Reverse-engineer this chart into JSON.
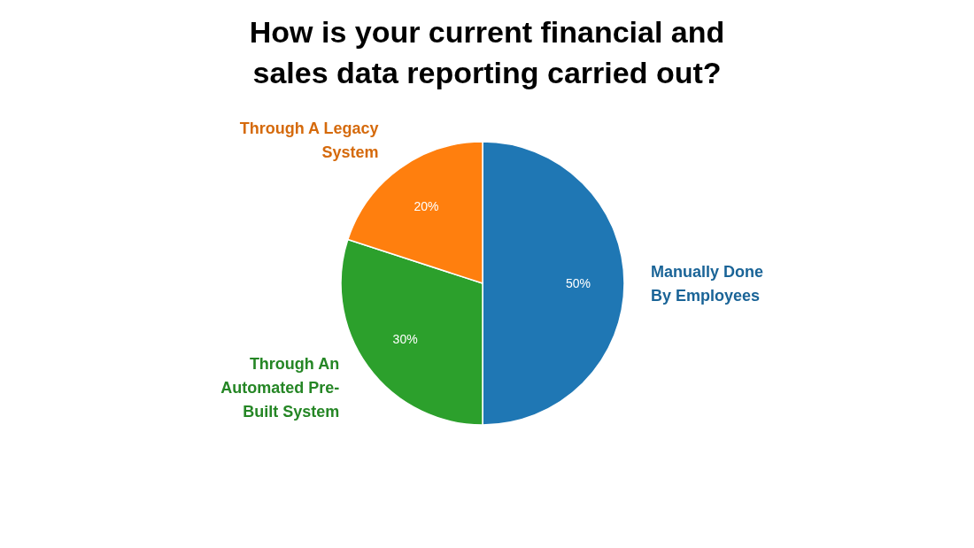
{
  "chart_data": {
    "type": "pie",
    "title": "How is your current financial and sales data reporting carried out?",
    "categories": [
      "Manually Done By Employees",
      "Through An Automated Pre-Built System",
      "Through A Legacy System"
    ],
    "values": [
      50,
      30,
      20
    ],
    "colors": [
      "#1f77b4",
      "#2ca02c",
      "#ff7f0e"
    ],
    "value_labels": [
      "50%",
      "30%",
      "20%"
    ]
  }
}
